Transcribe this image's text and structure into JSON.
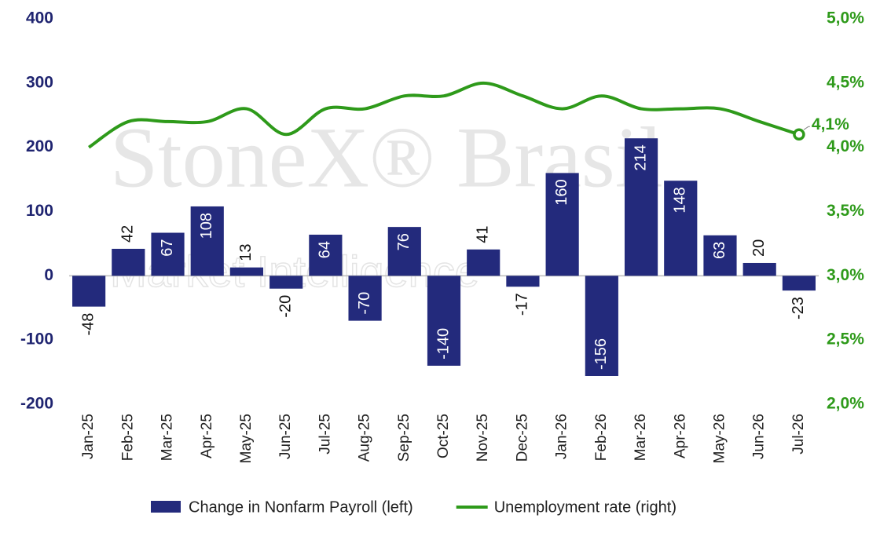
{
  "chart_data": {
    "type": "bar-line",
    "watermark": [
      "StoneX® Brasil",
      "Market Intelligence"
    ],
    "categories": [
      "Jan-25",
      "Feb-25",
      "Mar-25",
      "Apr-25",
      "May-25",
      "Jun-25",
      "Jul-25",
      "Aug-25",
      "Sep-25",
      "Oct-25",
      "Nov-25",
      "Dec-25",
      "Jan-26",
      "Feb-26",
      "Mar-26",
      "Apr-26",
      "May-26",
      "Jun-26",
      "Jul-26"
    ],
    "series": [
      {
        "name": "Change in Nonfarm Payroll (left)",
        "type": "bar",
        "color": "#232a7c",
        "values": [
          -48,
          42,
          67,
          108,
          13,
          -20,
          64,
          -70,
          76,
          -140,
          41,
          -17,
          160,
          -156,
          214,
          148,
          63,
          20,
          -23
        ]
      },
      {
        "name": "Unemployment rate (right)",
        "type": "line",
        "axis": "y2",
        "color": "#2e9a1a",
        "values": [
          4.0,
          4.2,
          4.2,
          4.2,
          4.3,
          4.1,
          4.3,
          4.3,
          4.4,
          4.4,
          4.5,
          4.4,
          4.3,
          4.4,
          4.3,
          4.3,
          4.3,
          4.2,
          4.1
        ],
        "value_labels": [
          null,
          null,
          null,
          null,
          null,
          null,
          null,
          null,
          null,
          null,
          null,
          null,
          null,
          null,
          null,
          null,
          null,
          null,
          "4,1%"
        ]
      }
    ],
    "ylim": [
      -200,
      400
    ],
    "yticks": [
      -200,
      -100,
      0,
      100,
      200,
      300,
      400
    ],
    "y2lim": [
      2.0,
      5.0
    ],
    "y2ticks": [
      {
        "value": 2.0,
        "label": "2,0%"
      },
      {
        "value": 2.5,
        "label": "2,5%"
      },
      {
        "value": 3.0,
        "label": "3,0%"
      },
      {
        "value": 3.5,
        "label": "3,5%"
      },
      {
        "value": 4.0,
        "label": "4,0%"
      },
      {
        "value": 4.5,
        "label": "4,5%"
      },
      {
        "value": 5.0,
        "label": "5,0%"
      }
    ],
    "legend": "bottom"
  }
}
